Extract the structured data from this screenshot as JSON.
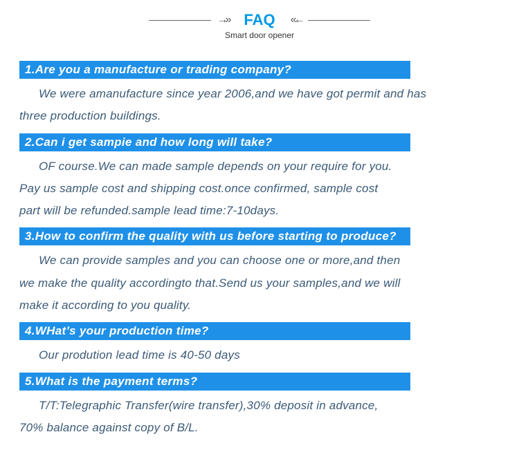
{
  "header": {
    "title": "FAQ",
    "subtitle": "Smart door opener"
  },
  "colors": {
    "title": "#0099e5",
    "bar_bg": "#1e90e8",
    "bar_text": "#ffffff",
    "answer_text": "#3b5a77",
    "subtitle": "#333333"
  },
  "faq": [
    {
      "q": "1.Are you a manufacture or trading company?",
      "a_lines": [
        {
          "text": "We were amanufacture since year 2006,and we have got permit and has",
          "indent": true
        },
        {
          "text": "three production buildings.",
          "indent": false
        }
      ]
    },
    {
      "q": "2.Can i get sampie and how long will take?",
      "a_lines": [
        {
          "text": "OF course.We can made sample depends on your require for you.",
          "indent": true
        },
        {
          "text": "Pay us sample cost and shipping cost.once confirmed, sample cost",
          "indent": false
        },
        {
          "text": "part will be refunded.sample lead time:7-10days.",
          "indent": false
        }
      ]
    },
    {
      "q": "3.How to confirm the quality with us before starting to produce?",
      "a_lines": [
        {
          "text": "We can provide samples and you can choose one  or more,and then",
          "indent": true
        },
        {
          "text": "we make the quality accordingto that.Send us your samples,and we will",
          "indent": false
        },
        {
          "text": "make it according to you quality.",
          "indent": false
        }
      ]
    },
    {
      "q": "4.WHat’s your production time?",
      "a_lines": [
        {
          "text": "Our prodution lead time is 40-50 days",
          "indent": true
        }
      ]
    },
    {
      "q": "5.What is the payment terms?",
      "a_lines": [
        {
          "text": "T/T:Telegraphic Transfer(wire transfer),30% deposit in advance,",
          "indent": true
        },
        {
          "text": "70% balance against copy of B/L.",
          "indent": false
        }
      ]
    }
  ]
}
